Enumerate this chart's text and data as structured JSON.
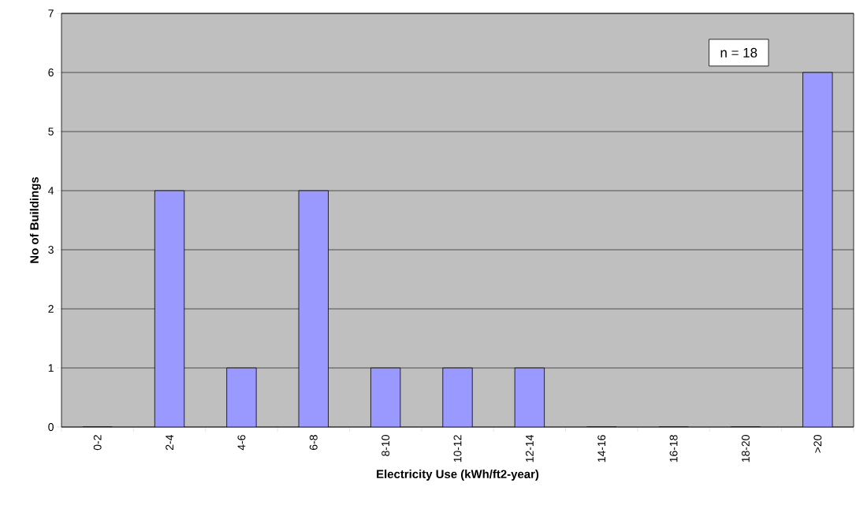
{
  "chart_data": {
    "type": "bar",
    "xlabel": "Electricity Use (kWh/ft2-year)",
    "ylabel": "No of Buildings",
    "categories": [
      "0-2",
      "2-4",
      "4-6",
      "6-8",
      "8-10",
      "10-12",
      "12-14",
      "14-16",
      "16-18",
      "18-20",
      ">20"
    ],
    "values": [
      0,
      4,
      1,
      4,
      1,
      1,
      1,
      0,
      0,
      0,
      6
    ],
    "color": "#9999ff",
    "ylim": [
      0,
      7
    ],
    "yticks": [
      0,
      1,
      2,
      3,
      4,
      5,
      6,
      7
    ],
    "grid": "y",
    "annotations": [
      "n = 18"
    ]
  }
}
